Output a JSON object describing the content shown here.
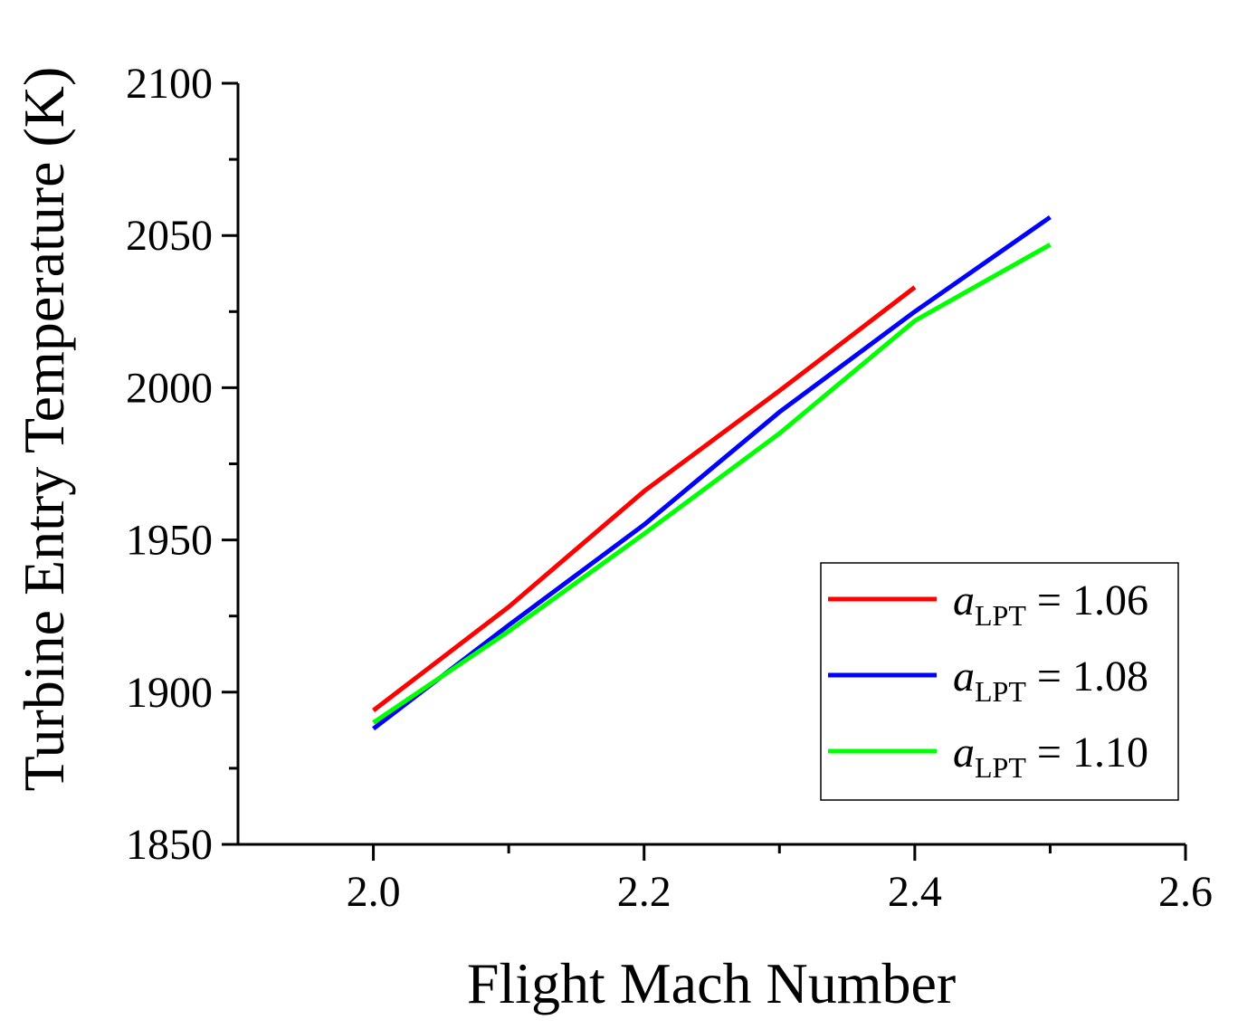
{
  "chart_data": {
    "type": "line",
    "xlabel": "Flight Mach Number",
    "ylabel": "Turbine Entry Temperature (K)",
    "xlim": [
      1.9,
      2.6
    ],
    "ylim": [
      1850,
      2100
    ],
    "xticks": [
      2.0,
      2.2,
      2.4,
      2.6
    ],
    "xtick_labels": [
      "2.0",
      "2.2",
      "2.4",
      "2.6"
    ],
    "yticks": [
      1850,
      1900,
      1950,
      2000,
      2050,
      2100
    ],
    "ytick_labels": [
      "1850",
      "1900",
      "1950",
      "2000",
      "2050",
      "2100"
    ],
    "x_minor_ticks": [
      2.1,
      2.3,
      2.5
    ],
    "y_minor_ticks": [
      1875,
      1925,
      1975,
      2025,
      2075
    ],
    "grid": false,
    "legend_position": "bottom-right",
    "x": [
      2.0,
      2.1,
      2.2,
      2.3,
      2.4,
      2.5
    ],
    "series": [
      {
        "name": "a_LPT = 1.06",
        "label_main": "a",
        "label_sub": "LPT",
        "label_value": " = 1.06",
        "color": "#ff0000",
        "x": [
          2.0,
          2.1,
          2.2,
          2.3,
          2.4
        ],
        "values": [
          1894,
          1928,
          1966,
          1999,
          2033
        ]
      },
      {
        "name": "a_LPT = 1.08",
        "label_main": "a",
        "label_sub": "LPT",
        "label_value": " = 1.08",
        "color": "#0000ff",
        "x": [
          2.0,
          2.1,
          2.2,
          2.3,
          2.4,
          2.5
        ],
        "values": [
          1888,
          1922,
          1955,
          1992,
          2025,
          2056
        ]
      },
      {
        "name": "a_LPT = 1.10",
        "label_main": "a",
        "label_sub": "LPT",
        "label_value": " = 1.10",
        "color": "#00ff00",
        "x": [
          2.0,
          2.1,
          2.2,
          2.3,
          2.4,
          2.5
        ],
        "values": [
          1890,
          1920,
          1952,
          1985,
          2022,
          2047
        ]
      }
    ]
  }
}
